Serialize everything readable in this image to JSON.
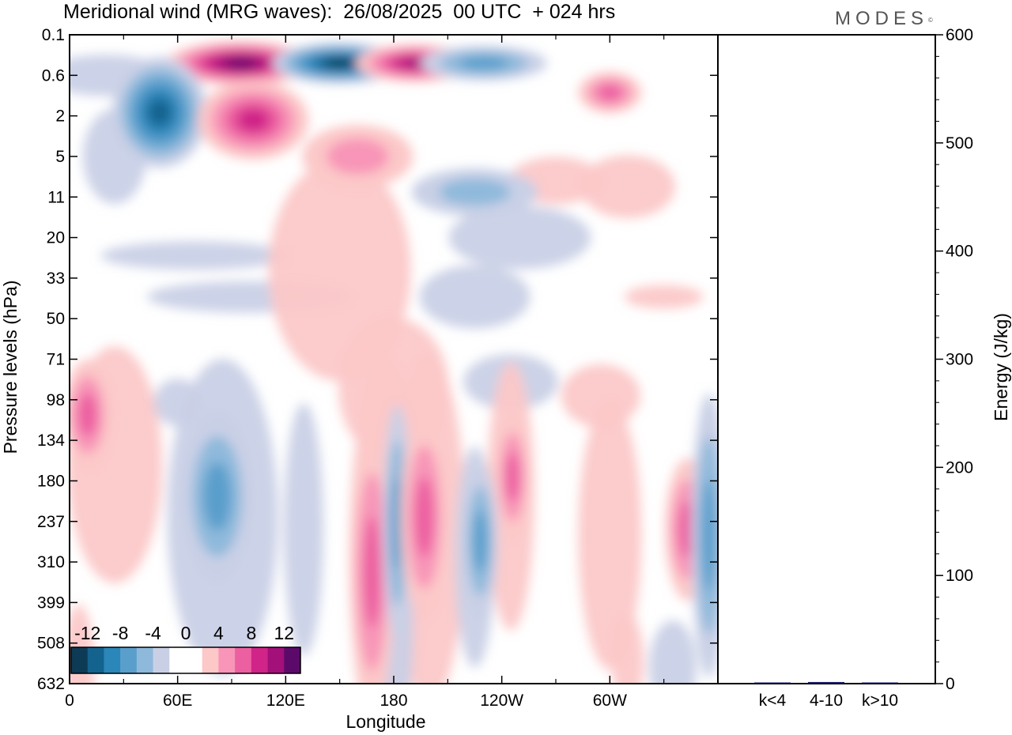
{
  "title": "Meridional wind (MRG waves):  26/08/2025  00 UTC  + 024 hrs",
  "brand": "MODES",
  "brand_mark": "©",
  "chart_data": [
    {
      "type": "heatmap",
      "title": "Meridional wind (MRG waves):  26/08/2025  00 UTC  + 024 hrs",
      "xlabel": "Longitude",
      "ylabel": "Pressure levels (hPa)",
      "x_ticks": [
        "0",
        "60E",
        "120E",
        "180",
        "120W",
        "60W"
      ],
      "y_ticks": [
        "0.1",
        "0.6",
        "2",
        "5",
        "11",
        "20",
        "33",
        "50",
        "71",
        "98",
        "134",
        "180",
        "237",
        "310",
        "399",
        "508",
        "632"
      ],
      "colorbar": {
        "labels": [
          "-12",
          "-8",
          "-4",
          "0",
          "4",
          "8",
          "12"
        ],
        "levels": [
          -14,
          -12,
          -10,
          -8,
          -6,
          -4,
          -2,
          2,
          4,
          6,
          8,
          10,
          12,
          14
        ],
        "colors": [
          "#0d3a55",
          "#14628e",
          "#2b86ba",
          "#5a9fcc",
          "#8fb9db",
          "#c9d0e6",
          "#ffffff",
          "#ffffff",
          "#fcc8c8",
          "#f895b8",
          "#ec5fa0",
          "#d02488",
          "#a3107a",
          "#5c0a6a"
        ]
      },
      "features": [
        {
          "name": "upper-positive-1",
          "lon": 95,
          "level": 0.35,
          "value": 14
        },
        {
          "name": "upper-negative-1",
          "lon": 150,
          "level": 0.35,
          "value": -14
        },
        {
          "name": "upper-positive-2",
          "lon": 192,
          "level": 0.35,
          "value": 13
        },
        {
          "name": "upper-negative-2",
          "lon": 50,
          "level": 1.8,
          "value": -13
        },
        {
          "name": "upper-positive-3",
          "lon": 102,
          "level": 2.2,
          "value": 10
        },
        {
          "name": "upper-negative-3",
          "lon": 230,
          "level": 0.35,
          "value": -9
        },
        {
          "name": "upper-positive-4",
          "lon": 300,
          "level": 1.0,
          "value": 9
        },
        {
          "name": "mid-positive-1",
          "lon": 160,
          "level": 5,
          "value": 7
        },
        {
          "name": "mid-negative-1",
          "lon": 225,
          "level": 10,
          "value": -7
        },
        {
          "name": "low-positive-1",
          "lon": 10,
          "level": 110,
          "value": 8
        },
        {
          "name": "low-negative-1",
          "lon": 82,
          "level": 200,
          "value": -8
        },
        {
          "name": "low-positive-2",
          "lon": 168,
          "level": 330,
          "value": 9
        },
        {
          "name": "low-negative-2",
          "lon": 182,
          "level": 240,
          "value": -8
        },
        {
          "name": "low-positive-3",
          "lon": 197,
          "level": 230,
          "value": 9
        },
        {
          "name": "low-negative-3",
          "lon": 228,
          "level": 270,
          "value": -9
        },
        {
          "name": "low-positive-4",
          "lon": 246,
          "level": 175,
          "value": 8
        },
        {
          "name": "low-positive-5",
          "lon": 343,
          "level": 250,
          "value": 9
        },
        {
          "name": "low-negative-4",
          "lon": 355,
          "level": 260,
          "value": -9
        }
      ]
    },
    {
      "type": "bar",
      "ylabel": "Energy (J/kg)",
      "ylim": [
        0,
        600
      ],
      "y_ticks": [
        "0",
        "100",
        "200",
        "300",
        "400",
        "500",
        "600"
      ],
      "categories": [
        "k<4",
        "4-10",
        "k>10"
      ],
      "values": [
        0.5,
        1.5,
        0.3
      ],
      "color": "#1a1a66"
    }
  ]
}
